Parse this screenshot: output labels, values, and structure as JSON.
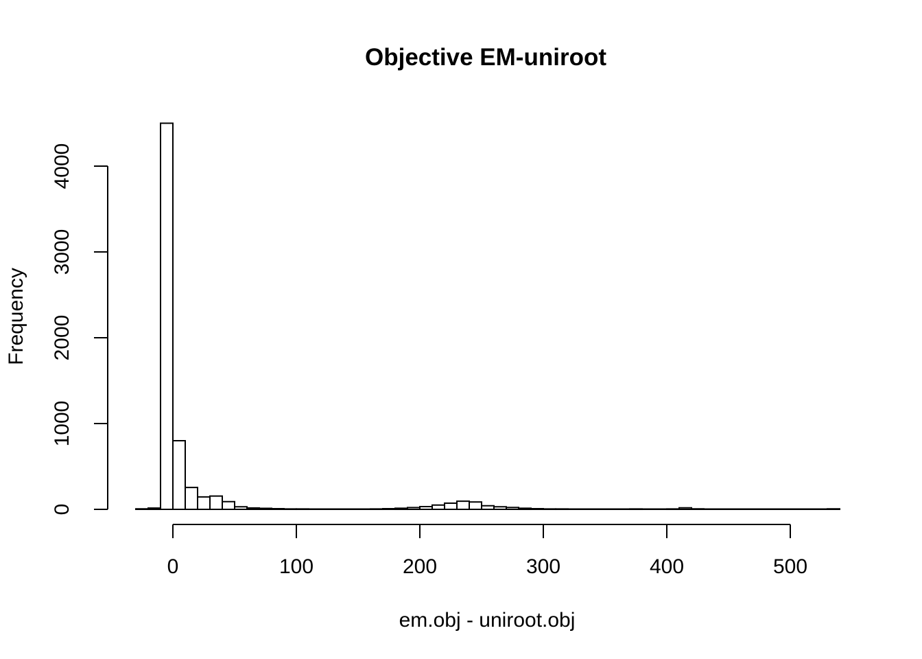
{
  "chart": {
    "title": "Objective EM-uniroot",
    "xlabel": "em.obj - uniroot.obj",
    "ylabel": "Frequency"
  },
  "chart_data": {
    "type": "bar",
    "subtype": "histogram",
    "title": "Objective EM-uniroot",
    "xlabel": "em.obj - uniroot.obj",
    "ylabel": "Frequency",
    "bin_start": -30,
    "bin_width": 10,
    "counts": [
      6,
      15,
      4500,
      800,
      255,
      145,
      155,
      90,
      30,
      16,
      12,
      8,
      5,
      5,
      4,
      4,
      4,
      4,
      4,
      5,
      8,
      13,
      21,
      32,
      50,
      72,
      95,
      86,
      42,
      30,
      22,
      13,
      8,
      5,
      5,
      4,
      4,
      4,
      4,
      4,
      5,
      4,
      4,
      5,
      18,
      6,
      4,
      4,
      4,
      4,
      4,
      4,
      4,
      4,
      4,
      4,
      6
    ],
    "x_ticks": [
      0,
      100,
      200,
      300,
      400,
      500
    ],
    "y_ticks": [
      0,
      1000,
      2000,
      3000,
      4000
    ],
    "xlim": [
      -52.8,
      562.8
    ],
    "ylim": [
      0,
      4500
    ],
    "grid": false,
    "legend": "none",
    "bar_fill": "#ffffff",
    "bar_stroke": "#000000",
    "axis_color": "#000000",
    "text_color": "#000000",
    "background": "#ffffff"
  }
}
